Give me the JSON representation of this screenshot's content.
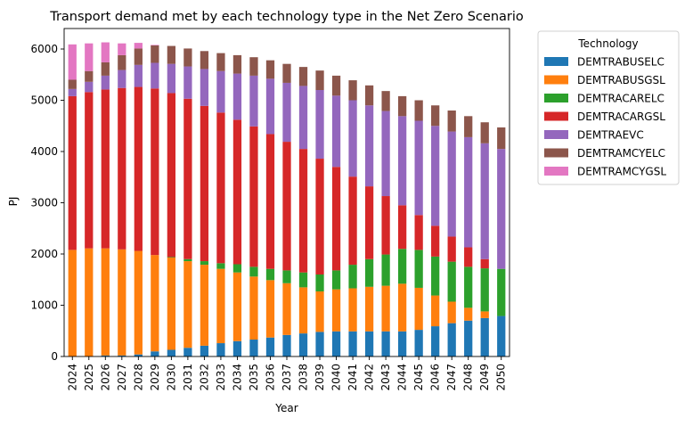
{
  "chart_data": {
    "type": "bar",
    "stacked": true,
    "title": "Transport demand met by each technology type in the Net Zero Scenario",
    "xlabel": "Year",
    "ylabel": "PJ",
    "ylim": [
      0,
      6400
    ],
    "yticks": [
      0,
      1000,
      2000,
      3000,
      4000,
      5000,
      6000
    ],
    "grid": false,
    "legend": {
      "title": "Technology",
      "placement": "outside-top-right"
    },
    "categories": [
      "2024",
      "2025",
      "2026",
      "2027",
      "2028",
      "2029",
      "2030",
      "2031",
      "2032",
      "2033",
      "2034",
      "2035",
      "2036",
      "2037",
      "2038",
      "2039",
      "2040",
      "2041",
      "2042",
      "2043",
      "2044",
      "2045",
      "2046",
      "2047",
      "2048",
      "2049",
      "2050"
    ],
    "series": [
      {
        "name": "DEMTRABUSELC",
        "color": "#1f77b4",
        "values": [
          0,
          0,
          20,
          20,
          40,
          100,
          130,
          170,
          210,
          260,
          300,
          330,
          370,
          420,
          450,
          480,
          490,
          490,
          490,
          490,
          490,
          520,
          590,
          650,
          700,
          750,
          790
        ]
      },
      {
        "name": "DEMTRABUSGSL",
        "color": "#ff7f0e",
        "values": [
          2080,
          2110,
          2090,
          2070,
          2020,
          1880,
          1800,
          1690,
          1580,
          1450,
          1340,
          1230,
          1120,
          1010,
          900,
          790,
          820,
          840,
          870,
          890,
          930,
          820,
          600,
          420,
          250,
          130,
          0
        ]
      },
      {
        "name": "DEMTRACARELC",
        "color": "#2ca02c",
        "values": [
          0,
          0,
          0,
          0,
          0,
          0,
          10,
          40,
          70,
          110,
          160,
          190,
          220,
          250,
          290,
          330,
          370,
          460,
          540,
          610,
          680,
          740,
          760,
          780,
          800,
          840,
          920
        ]
      },
      {
        "name": "DEMTRACARGSL",
        "color": "#d62728",
        "values": [
          3000,
          3050,
          3100,
          3150,
          3200,
          3250,
          3200,
          3130,
          3030,
          2940,
          2820,
          2740,
          2630,
          2510,
          2410,
          2260,
          2020,
          1720,
          1420,
          1140,
          850,
          680,
          600,
          490,
          380,
          180,
          0
        ]
      },
      {
        "name": "DEMTRAEVC",
        "color": "#9467bd",
        "values": [
          140,
          200,
          270,
          350,
          430,
          500,
          570,
          630,
          720,
          810,
          900,
          990,
          1080,
          1150,
          1230,
          1340,
          1390,
          1490,
          1580,
          1660,
          1740,
          1840,
          1950,
          2050,
          2150,
          2260,
          2340
        ]
      },
      {
        "name": "DEMTRAMCYELC",
        "color": "#8c564b",
        "values": [
          180,
          210,
          260,
          290,
          320,
          340,
          350,
          350,
          350,
          350,
          360,
          360,
          360,
          370,
          370,
          380,
          390,
          390,
          390,
          390,
          390,
          400,
          400,
          410,
          410,
          410,
          420
        ]
      },
      {
        "name": "DEMTRAMCYGSL",
        "color": "#e377c2",
        "values": [
          690,
          540,
          390,
          230,
          110,
          10,
          0,
          0,
          0,
          0,
          0,
          0,
          0,
          0,
          0,
          0,
          0,
          0,
          0,
          0,
          0,
          0,
          0,
          0,
          0,
          0,
          0
        ]
      }
    ]
  }
}
